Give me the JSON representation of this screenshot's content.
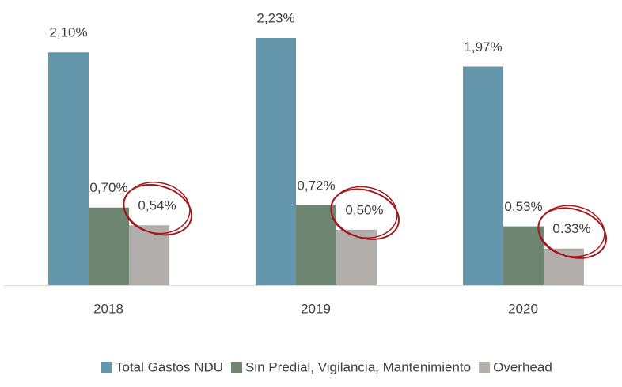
{
  "chart_data": {
    "type": "bar",
    "categories": [
      "2018",
      "2019",
      "2020"
    ],
    "series": [
      {
        "name": "Total Gastos NDU",
        "color": "#6497ab",
        "values": [
          2.1,
          2.23,
          1.97
        ],
        "value_labels": [
          "2,10%",
          "2,23%",
          "1,97%"
        ]
      },
      {
        "name": "Sin Predial, Vigilancia, Mantenimiento",
        "color": "#6e8572",
        "values": [
          0.7,
          0.72,
          0.53
        ],
        "value_labels": [
          "0,70%",
          "0,72%",
          "0,53%"
        ]
      },
      {
        "name": "Overhead",
        "color": "#b1aeac",
        "values": [
          0.54,
          0.5,
          0.33
        ],
        "value_labels": [
          "0,54%",
          "0,50%",
          "0.33%"
        ]
      }
    ],
    "legend": "bottom"
  }
}
